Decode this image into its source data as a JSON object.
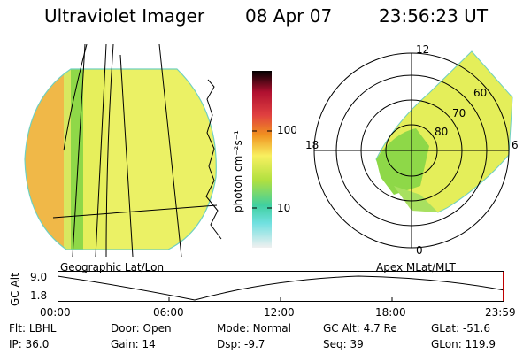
{
  "header": {
    "instrument": "Ultraviolet Imager",
    "date": "08 Apr 07",
    "time": "23:56:23 UT"
  },
  "colorbar": {
    "unit_label": "photon cm⁻²s⁻¹",
    "ticks": [
      "100",
      "10"
    ]
  },
  "panels": {
    "geo_label": "Geographic Lat/Lon",
    "apex_label": "Apex MLat/MLT"
  },
  "polar": {
    "mlt_labels": {
      "top": "12",
      "left": "18",
      "right": "6",
      "bottom": "0"
    },
    "lat_labels": [
      "60",
      "70",
      "80"
    ]
  },
  "altitude": {
    "axis_label": "GC Alt",
    "y_ticks": [
      "9.0",
      "1.8"
    ],
    "x_ticks": [
      "00:00",
      "06:00",
      "12:00",
      "18:00",
      "23:59"
    ]
  },
  "info": {
    "row1": [
      {
        "key": "Flt:",
        "value": "LBHL"
      },
      {
        "key": "Door:",
        "value": "Open"
      },
      {
        "key": "Mode:",
        "value": "Normal"
      },
      {
        "key": "GC Alt:",
        "value": "4.7 Re"
      },
      {
        "key": "GLat:",
        "value": "-51.6"
      }
    ],
    "row2": [
      {
        "key": "IP:",
        "value": "36.0"
      },
      {
        "key": "Gain:",
        "value": "14"
      },
      {
        "key": "Dsp:",
        "value": "-9.7"
      },
      {
        "key": "Seq:",
        "value": "39"
      },
      {
        "key": "GLon:",
        "value": "119.9"
      }
    ]
  },
  "colors": {
    "image_main": "#e8f060",
    "image_edge": "#f0b040",
    "image_green": "#7ad84a",
    "marker": "#c00000"
  }
}
